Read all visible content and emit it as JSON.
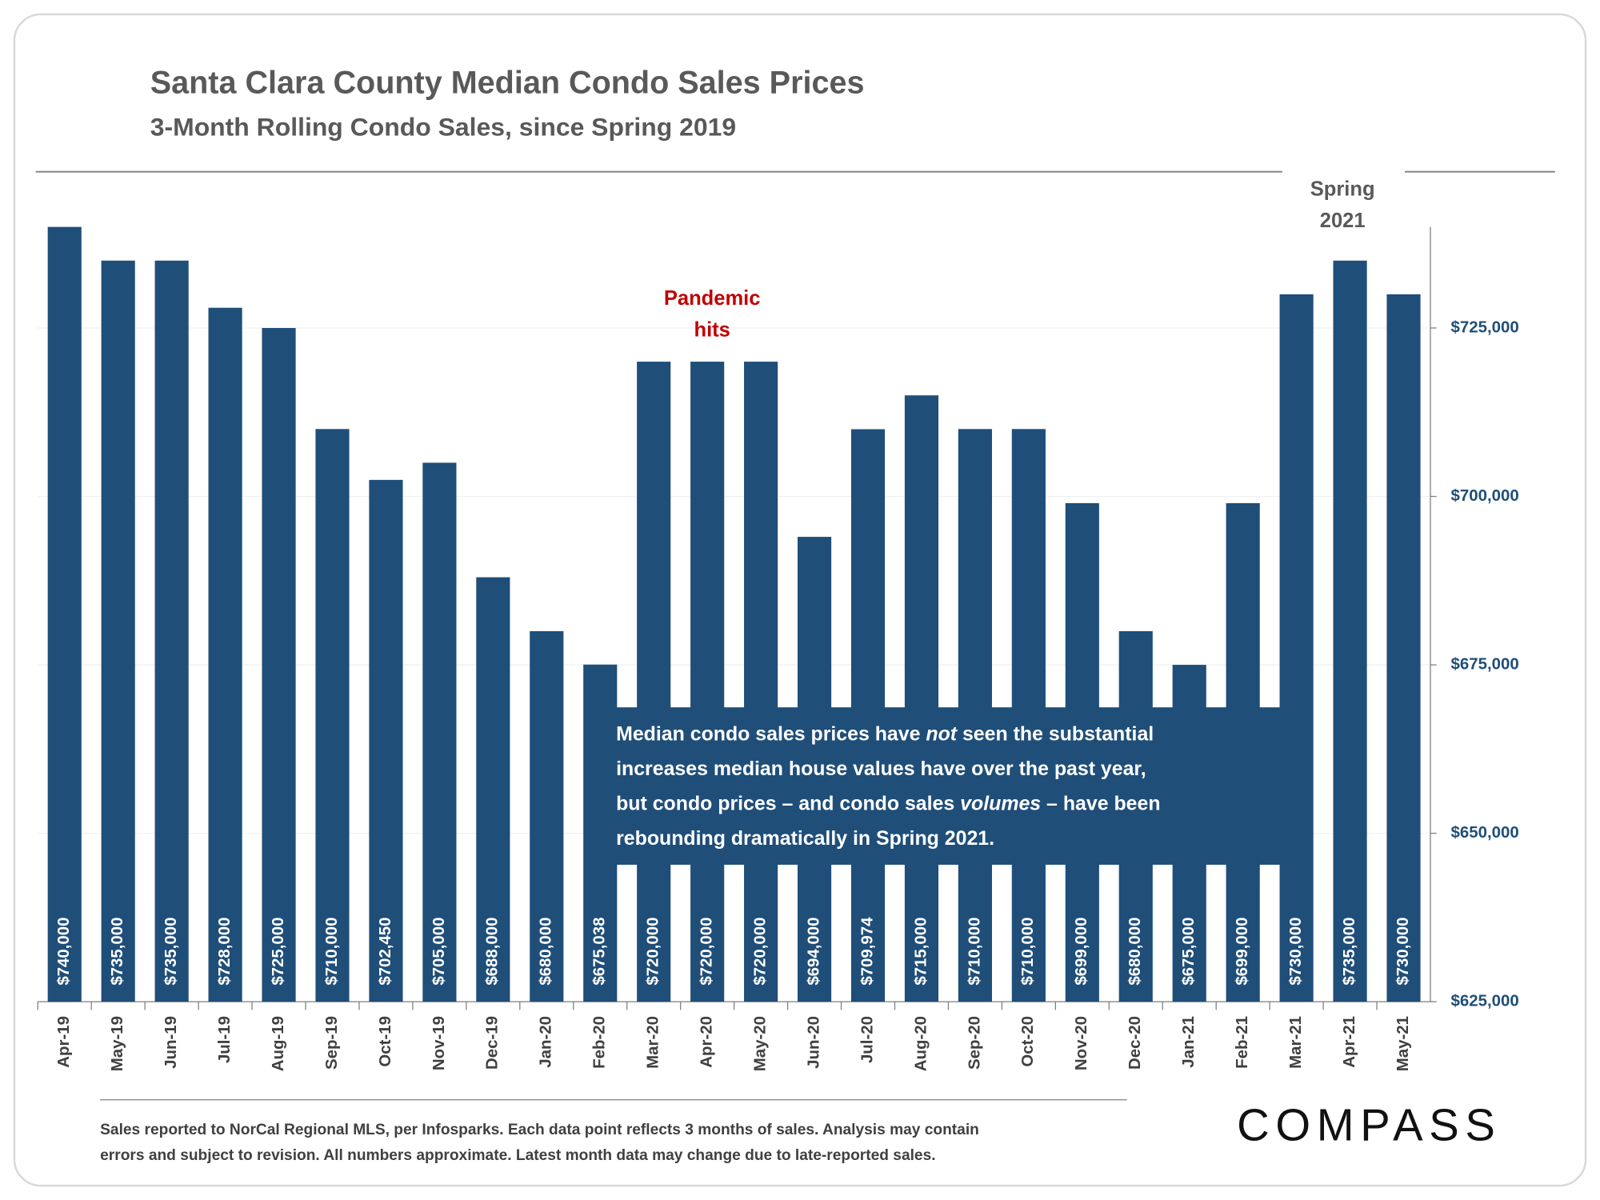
{
  "chart_data": {
    "type": "bar",
    "title": "Santa Clara County Median Condo Sales Prices",
    "subtitle": "3-Month Rolling Condo Sales, since Spring 2019",
    "categories": [
      "Apr-19",
      "May-19",
      "Jun-19",
      "Jul-19",
      "Aug-19",
      "Sep-19",
      "Oct-19",
      "Nov-19",
      "Dec-19",
      "Jan-20",
      "Feb-20",
      "Mar-20",
      "Apr-20",
      "May-20",
      "Jun-20",
      "Jul-20",
      "Aug-20",
      "Sep-20",
      "Oct-20",
      "Nov-20",
      "Dec-20",
      "Jan-21",
      "Feb-21",
      "Mar-21",
      "Apr-21",
      "May-21"
    ],
    "values": [
      740000,
      735000,
      735000,
      728000,
      725000,
      710000,
      702450,
      705000,
      688000,
      680000,
      675038,
      720000,
      720000,
      720000,
      694000,
      709974,
      715000,
      710000,
      710000,
      699000,
      680000,
      675000,
      699000,
      730000,
      735000,
      730000
    ],
    "value_labels": [
      "$740,000",
      "$735,000",
      "$735,000",
      "$728,000",
      "$725,000",
      "$710,000",
      "$702,450",
      "$705,000",
      "$688,000",
      "$680,000",
      "$675,038",
      "$720,000",
      "$720,000",
      "$720,000",
      "$694,000",
      "$709,974",
      "$715,000",
      "$710,000",
      "$710,000",
      "$699,000",
      "$680,000",
      "$675,000",
      "$699,000",
      "$730,000",
      "$735,000",
      "$730,000"
    ],
    "color": "#1f4e79",
    "ylim": [
      625000,
      740000
    ],
    "yticks": [
      {
        "value": 625000,
        "label": "$625,000"
      },
      {
        "value": 650000,
        "label": "$650,000"
      },
      {
        "value": 675000,
        "label": "$675,000"
      },
      {
        "value": 700000,
        "label": "$700,000"
      },
      {
        "value": 725000,
        "label": "$725,000"
      }
    ],
    "grid": true,
    "annotations": {
      "pandemic": [
        "Pandemic",
        "hits"
      ],
      "spring": [
        "Spring",
        "2021"
      ],
      "note_lines": [
        [
          {
            "text": "Median condo sales prices have "
          },
          {
            "text": "not",
            "italic": true
          },
          {
            "text": " seen the substantial"
          }
        ],
        [
          {
            "text": "increases median house values have over the past year,"
          }
        ],
        [
          {
            "text": "but condo prices – and condo sales "
          },
          {
            "text": "volumes",
            "italic": true
          },
          {
            "text": " – have been"
          }
        ],
        [
          {
            "text": "rebounding dramatically in Spring 2021."
          }
        ]
      ]
    },
    "source": [
      "Sales reported to NorCal Regional MLS, per Infosparks. Each data point reflects 3 months of sales. Analysis may contain",
      "errors and subject to revision. All numbers approximate. Latest month data may change due to late-reported sales."
    ],
    "logo": "COMPASS"
  }
}
